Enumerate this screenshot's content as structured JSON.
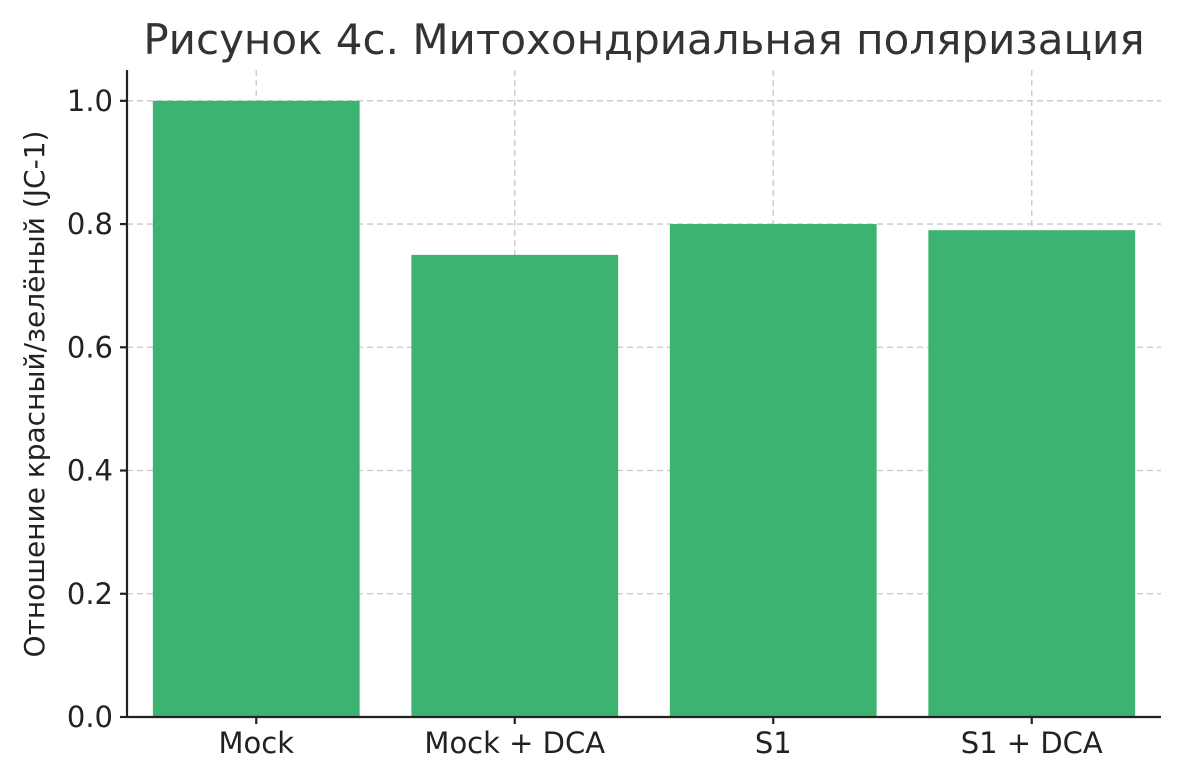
{
  "chart_data": {
    "type": "bar",
    "title": "Рисунок 4c. Митохондриальная поляризация",
    "xlabel": "",
    "ylabel": "Отношение красный/зелёный (JC-1)",
    "categories": [
      "Mock",
      "Mock + DCA",
      "S1",
      "S1 + DCA"
    ],
    "values": [
      1.0,
      0.75,
      0.8,
      0.79
    ],
    "ylim": [
      0,
      1.05
    ],
    "yticks": [
      "0.0",
      "0.2",
      "0.4",
      "0.6",
      "0.8",
      "1.0"
    ],
    "ytick_values": [
      0,
      0.2,
      0.4,
      0.6,
      0.8,
      1.0
    ],
    "bar_color": "#3cb371",
    "grid": true,
    "legend": "none"
  }
}
